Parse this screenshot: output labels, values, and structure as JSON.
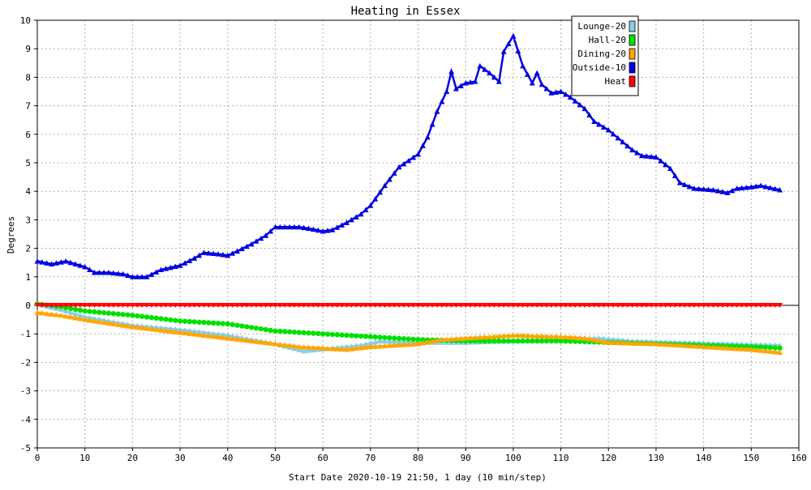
{
  "chart_data": {
    "type": "line",
    "title": "Heating in Essex",
    "xlabel": "Start Date 2020-10-19 21:50, 1 day (10 min/step)",
    "ylabel": "Degrees",
    "xlim": [
      0,
      160
    ],
    "ylim": [
      -5,
      10
    ],
    "x_ticks": [
      0,
      10,
      20,
      30,
      40,
      50,
      60,
      70,
      80,
      90,
      100,
      110,
      120,
      130,
      140,
      150,
      160
    ],
    "y_ticks": [
      -5,
      -4,
      -3,
      -2,
      -1,
      0,
      1,
      2,
      3,
      4,
      5,
      6,
      7,
      8,
      9,
      10
    ],
    "grid": true,
    "legend_position": "top-right",
    "series": [
      {
        "name": "Lounge-20",
        "color": "#87ceeb",
        "marker": "triangle",
        "keypoints": [
          [
            0,
            0.05
          ],
          [
            5,
            -0.15
          ],
          [
            10,
            -0.4
          ],
          [
            20,
            -0.7
          ],
          [
            30,
            -0.85
          ],
          [
            40,
            -1.05
          ],
          [
            45,
            -1.2
          ],
          [
            50,
            -1.35
          ],
          [
            56,
            -1.6
          ],
          [
            62,
            -1.5
          ],
          [
            68,
            -1.4
          ],
          [
            72,
            -1.25
          ],
          [
            80,
            -1.3
          ],
          [
            90,
            -1.3
          ],
          [
            100,
            -1.25
          ],
          [
            110,
            -1.2
          ],
          [
            118,
            -1.15
          ],
          [
            125,
            -1.25
          ],
          [
            135,
            -1.3
          ],
          [
            145,
            -1.35
          ],
          [
            156,
            -1.4
          ]
        ]
      },
      {
        "name": "Hall-20",
        "color": "#00e000",
        "marker": "circle",
        "keypoints": [
          [
            0,
            0.05
          ],
          [
            5,
            -0.05
          ],
          [
            10,
            -0.2
          ],
          [
            20,
            -0.35
          ],
          [
            30,
            -0.55
          ],
          [
            40,
            -0.65
          ],
          [
            50,
            -0.9
          ],
          [
            60,
            -1.0
          ],
          [
            70,
            -1.1
          ],
          [
            80,
            -1.2
          ],
          [
            90,
            -1.25
          ],
          [
            100,
            -1.25
          ],
          [
            110,
            -1.25
          ],
          [
            120,
            -1.3
          ],
          [
            130,
            -1.35
          ],
          [
            140,
            -1.4
          ],
          [
            150,
            -1.45
          ],
          [
            156,
            -1.5
          ]
        ]
      },
      {
        "name": "Dining-20",
        "color": "#ffa500",
        "marker": "triangle",
        "keypoints": [
          [
            0,
            -0.25
          ],
          [
            5,
            -0.35
          ],
          [
            10,
            -0.5
          ],
          [
            20,
            -0.75
          ],
          [
            30,
            -0.95
          ],
          [
            40,
            -1.15
          ],
          [
            50,
            -1.35
          ],
          [
            55,
            -1.45
          ],
          [
            60,
            -1.5
          ],
          [
            65,
            -1.55
          ],
          [
            70,
            -1.45
          ],
          [
            75,
            -1.4
          ],
          [
            80,
            -1.35
          ],
          [
            85,
            -1.2
          ],
          [
            90,
            -1.15
          ],
          [
            100,
            -1.05
          ],
          [
            110,
            -1.1
          ],
          [
            115,
            -1.15
          ],
          [
            120,
            -1.3
          ],
          [
            130,
            -1.35
          ],
          [
            140,
            -1.45
          ],
          [
            150,
            -1.55
          ],
          [
            156,
            -1.65
          ]
        ]
      },
      {
        "name": "Outside-10",
        "color": "#0000e0",
        "marker": "triangle",
        "keypoints": [
          [
            0,
            1.55
          ],
          [
            3,
            1.45
          ],
          [
            6,
            1.55
          ],
          [
            8,
            1.45
          ],
          [
            10,
            1.35
          ],
          [
            12,
            1.15
          ],
          [
            15,
            1.15
          ],
          [
            18,
            1.1
          ],
          [
            20,
            1.0
          ],
          [
            23,
            1.0
          ],
          [
            26,
            1.25
          ],
          [
            30,
            1.4
          ],
          [
            33,
            1.65
          ],
          [
            35,
            1.85
          ],
          [
            38,
            1.8
          ],
          [
            40,
            1.75
          ],
          [
            42,
            1.9
          ],
          [
            45,
            2.15
          ],
          [
            48,
            2.45
          ],
          [
            50,
            2.75
          ],
          [
            55,
            2.75
          ],
          [
            57,
            2.7
          ],
          [
            60,
            2.6
          ],
          [
            62,
            2.65
          ],
          [
            65,
            2.9
          ],
          [
            68,
            3.2
          ],
          [
            70,
            3.5
          ],
          [
            73,
            4.2
          ],
          [
            76,
            4.85
          ],
          [
            80,
            5.3
          ],
          [
            82,
            5.9
          ],
          [
            84,
            6.8
          ],
          [
            86,
            7.5
          ],
          [
            87,
            8.2
          ],
          [
            88,
            7.6
          ],
          [
            90,
            7.8
          ],
          [
            92,
            7.85
          ],
          [
            93,
            8.4
          ],
          [
            95,
            8.15
          ],
          [
            97,
            7.85
          ],
          [
            98,
            8.9
          ],
          [
            100,
            9.45
          ],
          [
            102,
            8.4
          ],
          [
            104,
            7.8
          ],
          [
            105,
            8.15
          ],
          [
            106,
            7.75
          ],
          [
            108,
            7.45
          ],
          [
            110,
            7.5
          ],
          [
            112,
            7.3
          ],
          [
            115,
            6.9
          ],
          [
            117,
            6.45
          ],
          [
            120,
            6.15
          ],
          [
            125,
            5.45
          ],
          [
            127,
            5.25
          ],
          [
            130,
            5.2
          ],
          [
            133,
            4.8
          ],
          [
            135,
            4.3
          ],
          [
            138,
            4.1
          ],
          [
            142,
            4.05
          ],
          [
            145,
            3.95
          ],
          [
            147,
            4.1
          ],
          [
            150,
            4.15
          ],
          [
            152,
            4.2
          ],
          [
            156,
            4.05
          ]
        ]
      },
      {
        "name": "Heat",
        "color": "#ff0000",
        "marker": "triangle-down",
        "keypoints": [
          [
            0,
            0
          ],
          [
            156,
            0
          ]
        ]
      }
    ]
  }
}
